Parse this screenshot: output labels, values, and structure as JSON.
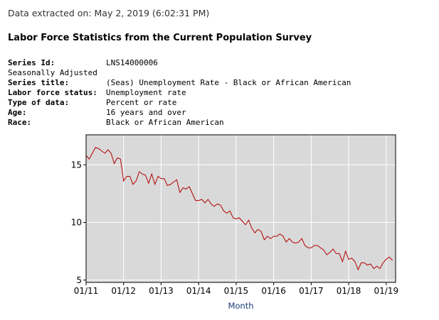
{
  "header": {
    "extracted": "Data extracted on: May 2, 2019 (6:02:31 PM)",
    "title": "Labor Force Statistics from the Current Population Survey"
  },
  "series_info": {
    "series_id_label": "Series Id:",
    "series_id": "LNS14000006",
    "seasonal": "Seasonally Adjusted",
    "series_title_label": "Series title:",
    "series_title": "(Seas) Unemployment Rate - Black or African American",
    "lf_status_label": "Labor force status:",
    "lf_status": "Unemployment rate",
    "type_label": "Type of data:",
    "type": "Percent or rate",
    "age_label": "Age:",
    "age": "16 years and over",
    "race_label": "Race:",
    "race": "Black or African American"
  },
  "colors": {
    "line": "#b30000",
    "plot_bg": "#d9d9d9",
    "grid": "#ffffff",
    "xlabel": "#1a3c7a"
  },
  "chart_data": {
    "type": "line",
    "title": "",
    "xlabel": "Month",
    "ylabel": "",
    "x_range": [
      "2011-01",
      "2019-04"
    ],
    "ylim": [
      4.8,
      17.6
    ],
    "y_ticks": [
      5,
      10,
      15
    ],
    "x_ticks": [
      "01/11",
      "01/12",
      "01/13",
      "01/14",
      "01/15",
      "01/16",
      "01/17",
      "01/18",
      "01/19"
    ],
    "series": [
      {
        "name": "Unemployment Rate - Black or African American",
        "start": "2011-01",
        "values": [
          15.8,
          15.5,
          16.0,
          16.5,
          16.4,
          16.2,
          16.0,
          16.3,
          16.0,
          15.1,
          15.6,
          15.5,
          13.6,
          14.0,
          14.0,
          13.3,
          13.6,
          14.4,
          14.2,
          14.1,
          13.4,
          14.2,
          13.3,
          14.0,
          13.8,
          13.8,
          13.2,
          13.3,
          13.5,
          13.7,
          12.6,
          13.0,
          12.9,
          13.1,
          12.5,
          11.9,
          11.9,
          12.0,
          11.7,
          12.0,
          11.6,
          11.4,
          11.6,
          11.5,
          11.0,
          10.8,
          11.0,
          10.4,
          10.3,
          10.4,
          10.1,
          9.8,
          10.2,
          9.5,
          9.1,
          9.4,
          9.2,
          8.5,
          8.8,
          8.6,
          8.8,
          8.8,
          9.0,
          8.8,
          8.3,
          8.6,
          8.3,
          8.2,
          8.3,
          8.6,
          8.0,
          7.8,
          7.8,
          8.0,
          8.0,
          7.8,
          7.6,
          7.2,
          7.4,
          7.7,
          7.3,
          7.3,
          6.6,
          7.5,
          6.8,
          6.9,
          6.6,
          5.9,
          6.5,
          6.5,
          6.3,
          6.4,
          6.0,
          6.2,
          6.0,
          6.5,
          6.8,
          7.0,
          6.7
        ]
      }
    ]
  }
}
